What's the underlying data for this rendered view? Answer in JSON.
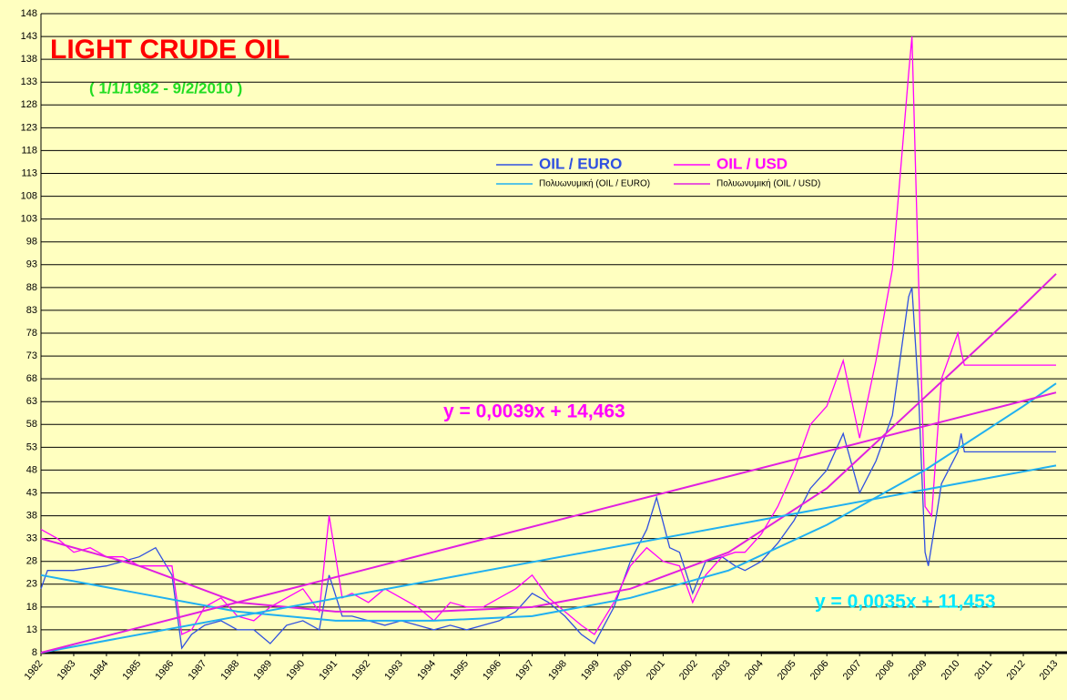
{
  "chart_data": {
    "type": "line",
    "title": "LIGHT CRUDE OIL",
    "subtitle": "( 1/1/1982 - 9/2/2010 )",
    "xlim": [
      1982,
      2013
    ],
    "xticks": [
      1982,
      1983,
      1984,
      1985,
      1986,
      1987,
      1988,
      1989,
      1990,
      1991,
      1992,
      1993,
      1994,
      1995,
      1996,
      1997,
      1998,
      1999,
      2000,
      2001,
      2002,
      2003,
      2004,
      2005,
      2006,
      2007,
      2008,
      2009,
      2010,
      2011,
      2012,
      2013
    ],
    "ylim": [
      8,
      148
    ],
    "yticks": [
      8,
      13,
      18,
      23,
      28,
      33,
      38,
      43,
      48,
      53,
      58,
      63,
      68,
      73,
      78,
      83,
      88,
      93,
      98,
      103,
      108,
      113,
      118,
      123,
      128,
      133,
      138,
      143,
      148
    ],
    "grid": true,
    "series": [
      {
        "name": "OIL / EURO",
        "color": "#3050e0",
        "x": [
          1982,
          1982.2,
          1983,
          1984,
          1985,
          1985.5,
          1986,
          1986.3,
          1986.6,
          1987,
          1987.5,
          1988,
          1988.5,
          1989,
          1989.5,
          1990,
          1990.5,
          1990.8,
          1991.2,
          1991.5,
          1992,
          1992.5,
          1993,
          1993.5,
          1994,
          1994.5,
          1995,
          1995.5,
          1996,
          1996.5,
          1997,
          1997.5,
          1998,
          1998.5,
          1998.9,
          1999.5,
          2000,
          2000.5,
          2000.8,
          2001.2,
          2001.5,
          2001.9,
          2002.3,
          2002.8,
          2003.2,
          2003.5,
          2004,
          2004.5,
          2005,
          2005.5,
          2006,
          2006.5,
          2007,
          2007.5,
          2008,
          2008.5,
          2008.6,
          2008.8,
          2009,
          2009.1,
          2009.5,
          2010,
          2010.1,
          2010.2,
          2013
        ],
        "values": [
          22,
          26,
          26,
          27,
          29,
          31,
          25,
          9,
          12,
          14,
          15,
          13,
          13,
          10,
          14,
          15,
          13,
          25,
          16,
          16,
          15,
          14,
          15,
          14,
          13,
          14,
          13,
          14,
          15,
          17,
          21,
          19,
          16,
          12,
          10,
          18,
          28,
          35,
          42,
          31,
          30,
          21,
          28,
          29,
          27,
          26,
          28,
          32,
          37,
          44,
          48,
          56,
          43,
          50,
          60,
          86,
          88,
          65,
          30,
          27,
          45,
          52,
          56,
          52,
          52
        ]
      },
      {
        "name": "OIL / USD",
        "color": "#ff00ff",
        "x": [
          1982,
          1982.5,
          1983,
          1983.5,
          1984,
          1984.5,
          1985,
          1985.5,
          1986,
          1986.3,
          1986.6,
          1987,
          1987.5,
          1988,
          1988.5,
          1989,
          1989.5,
          1990,
          1990.5,
          1990.8,
          1991.2,
          1991.5,
          1992,
          1992.5,
          1993,
          1993.5,
          1994,
          1994.5,
          1995,
          1995.5,
          1996,
          1996.5,
          1997,
          1997.5,
          1998,
          1998.5,
          1998.9,
          1999.5,
          2000,
          2000.5,
          2001,
          2001.5,
          2001.9,
          2002.3,
          2002.8,
          2003.2,
          2003.5,
          2004,
          2004.5,
          2005,
          2005.5,
          2006,
          2006.5,
          2007,
          2007.5,
          2008,
          2008.5,
          2008.6,
          2008.8,
          2009,
          2009.2,
          2009.5,
          2010,
          2010.1,
          2010.2,
          2013
        ],
        "values": [
          35,
          33,
          30,
          31,
          29,
          29,
          27,
          27,
          27,
          12,
          13,
          18,
          20,
          16,
          15,
          18,
          20,
          22,
          17,
          38,
          20,
          21,
          19,
          22,
          20,
          18,
          15,
          19,
          18,
          18,
          20,
          22,
          25,
          20,
          17,
          14,
          12,
          19,
          27,
          31,
          28,
          27,
          19,
          25,
          29,
          30,
          30,
          34,
          40,
          48,
          58,
          62,
          72,
          55,
          72,
          92,
          135,
          143,
          90,
          40,
          38,
          68,
          78,
          74,
          71,
          71
        ]
      },
      {
        "name": "Πολυωνυμική (OIL / EURO)",
        "color": "#20b0f0",
        "x": [
          1982,
          1985,
          1988,
          1991,
          1994,
          1997,
          2000,
          2003,
          2006,
          2009,
          2012,
          2013
        ],
        "values": [
          25,
          21,
          17,
          15,
          15,
          16,
          20,
          26,
          36,
          48,
          62,
          67
        ]
      },
      {
        "name": "Πολυωνυμική (OIL / USD)",
        "color": "#e020e0",
        "x": [
          1982,
          1985,
          1988,
          1991,
          1994,
          1997,
          2000,
          2003,
          2006,
          2009,
          2012,
          2013
        ],
        "values": [
          33,
          27,
          19,
          17,
          17,
          18,
          22,
          30,
          44,
          64,
          84,
          91
        ]
      },
      {
        "color": "#20b0f0",
        "x": [
          1982,
          2013
        ],
        "values": [
          8,
          49
        ]
      },
      {
        "color": "#e020e0",
        "x": [
          1982,
          2013
        ],
        "values": [
          8,
          65
        ]
      }
    ],
    "annotations": [
      {
        "text": "y = 0,0039x + 14,463",
        "color": "#ff00ff"
      },
      {
        "text": "y = 0,0035x + 11,453",
        "color": "#00e8ff"
      }
    ]
  }
}
